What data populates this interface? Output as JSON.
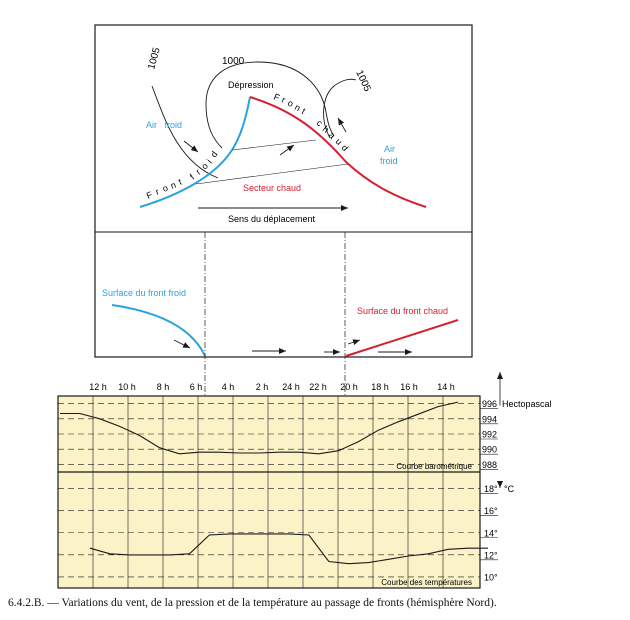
{
  "synoptic": {
    "isobars": [
      "1005",
      "1000",
      "1005"
    ],
    "depression": "Dépression",
    "front_cold_letters": [
      "F",
      "r",
      "o",
      "n",
      "t",
      " ",
      "f",
      "r",
      "o",
      "i",
      "d"
    ],
    "front_warm_letters": [
      "F",
      "r",
      "o",
      "n",
      "t",
      " ",
      "c",
      "h",
      "a",
      "u",
      "d"
    ],
    "air_froid_left": "Air   froid",
    "air_froid_right_1": "Air",
    "air_froid_right_2": "froid",
    "secteur": "Secteur chaud",
    "sens": "Sens du déplacement"
  },
  "section": {
    "cold_surface": "Surface du front froid",
    "warm_surface": "Surface du front chaud"
  },
  "chart_data": {
    "type": "line",
    "x": [
      "12 h",
      "10 h",
      "8 h",
      "6 h",
      "4 h",
      "2 h",
      "24 h",
      "22 h",
      "20 h",
      "18 h",
      "16 h",
      "14 h"
    ],
    "pressure": {
      "title": "Courbe barométrique",
      "unit": "Hectopascal",
      "ticks": [
        "996",
        "994",
        "992",
        "990",
        "988"
      ],
      "ylim": [
        987,
        997
      ],
      "values": [
        994.7,
        994.7,
        994.0,
        993.0,
        991.8,
        990.2,
        989.4,
        989.6,
        989.6,
        989.5,
        989.5,
        989.6,
        989.6,
        989.4,
        989.8,
        991.0,
        992.5,
        993.6,
        994.6,
        995.6,
        996.2
      ]
    },
    "temperature": {
      "title": "Courbe des températures",
      "unit": "°C",
      "ticks": [
        "18°",
        "16°",
        "14°",
        "12°"
      ],
      "extra_tick": "10°",
      "ylim": [
        9,
        19.5
      ],
      "values": [
        12.6,
        12.1,
        12.0,
        12.0,
        12.0,
        12.1,
        13.8,
        13.9,
        13.9,
        13.9,
        13.9,
        13.8,
        11.4,
        11.2,
        11.3,
        11.6,
        11.9,
        12.1,
        12.5,
        12.6,
        12.6
      ]
    }
  },
  "caption": "6.4.2.B. — Variations du vent, de la pression et de la température au passage de fronts (hémisphère Nord).",
  "colors": {
    "cold": "#2aa3da",
    "warm": "#d7202f",
    "chart_bg": "#fbf3c7",
    "line": "#1a1a1a"
  }
}
